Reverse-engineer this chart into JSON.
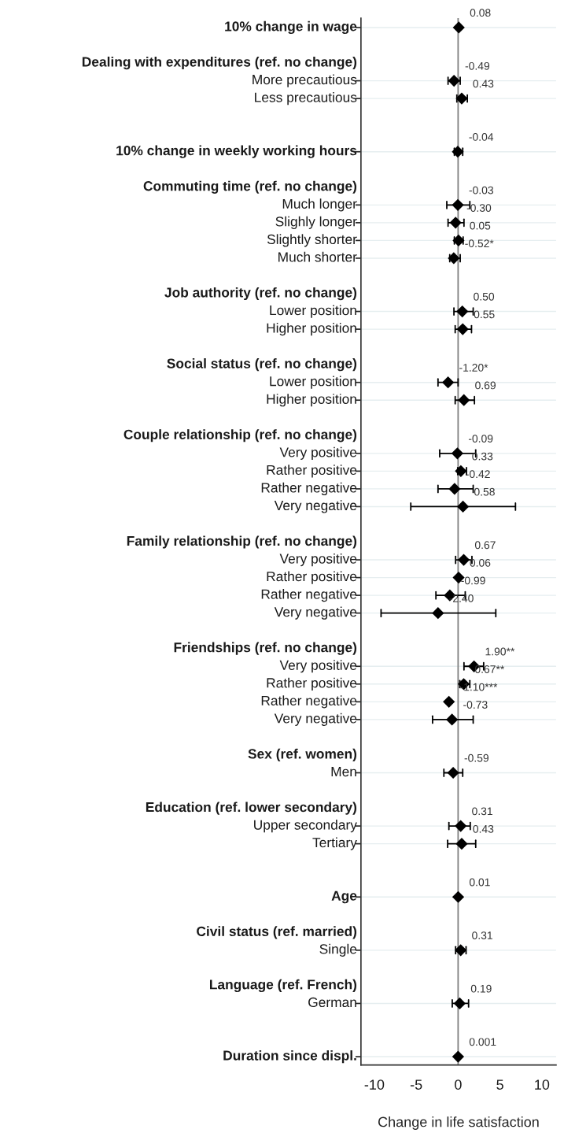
{
  "chart_data": {
    "type": "scatter",
    "orientation": "horizontal",
    "xlabel": "Change in life satisfaction",
    "categories": [
      "10% change in wage",
      null,
      "Dealing with expenditures (ref. no change)",
      "More precautious",
      "Less precautious",
      null,
      null,
      "10% change in weekly working hours",
      null,
      "Commuting time (ref. no change)",
      "Much longer",
      "Slighly longer",
      "Slightly shorter",
      "Much shorter",
      null,
      "Job authority (ref. no change)",
      "Lower position",
      "Higher position",
      null,
      "Social status (ref. no change)",
      "Lower position",
      "Higher position",
      null,
      "Couple relationship (ref. no change)",
      "Very positive",
      "Rather positive",
      "Rather negative",
      "Very negative",
      null,
      "Family relationship (ref. no change)",
      "Very positive",
      "Rather positive",
      "Rather negative",
      "Very negative",
      null,
      "Friendships (ref. no change)",
      "Very positive",
      "Rather positive",
      "Rather negative",
      "Very negative",
      null,
      "Sex (ref. women)",
      "Men",
      null,
      "Education (ref. lower secondary)",
      "Upper secondary",
      "Tertiary",
      null,
      null,
      "Age",
      null,
      "Civil status (ref. married)",
      "Single",
      null,
      "Language (ref. French)",
      "German",
      null,
      null,
      "Duration since displ."
    ],
    "values": [
      0.08,
      null,
      null,
      -0.49,
      0.43,
      null,
      null,
      -0.04,
      null,
      null,
      -0.03,
      -0.3,
      0.05,
      -0.52,
      null,
      null,
      0.5,
      0.55,
      null,
      null,
      -1.2,
      0.69,
      null,
      null,
      -0.09,
      0.33,
      -0.42,
      0.58,
      null,
      null,
      0.67,
      0.06,
      -0.99,
      -2.4,
      null,
      null,
      1.9,
      0.67,
      -1.1,
      -0.73,
      null,
      null,
      -0.59,
      null,
      null,
      0.31,
      0.43,
      null,
      null,
      0.01,
      null,
      null,
      0.31,
      null,
      null,
      0.19,
      null,
      null,
      0.001
    ],
    "errors": [
      null,
      null,
      null,
      [
        -1.2,
        0.25
      ],
      [
        -0.15,
        1.1
      ],
      null,
      null,
      [
        -0.45,
        0.55
      ],
      null,
      null,
      [
        -1.35,
        1.4
      ],
      [
        -1.2,
        0.7
      ],
      [
        -0.45,
        0.6
      ],
      [
        -1.0,
        0.25
      ],
      null,
      null,
      [
        -0.5,
        1.8
      ],
      [
        -0.35,
        1.6
      ],
      null,
      null,
      [
        -2.4,
        0
      ],
      [
        -0.35,
        1.95
      ],
      null,
      null,
      [
        -2.2,
        2.1
      ],
      [
        -0.05,
        1.0
      ],
      [
        -2.4,
        1.8
      ],
      [
        -5.65,
        6.85
      ],
      null,
      null,
      [
        -0.3,
        1.65
      ],
      null,
      [
        -2.65,
        0.85
      ],
      [
        -9.2,
        4.5
      ],
      null,
      null,
      [
        0.7,
        3.05
      ],
      [
        0.2,
        1.4
      ],
      null,
      [
        -3.05,
        1.8
      ],
      null,
      null,
      [
        -1.7,
        0.55
      ],
      null,
      null,
      [
        -1.1,
        1.45
      ],
      [
        -1.25,
        2.1
      ],
      null,
      null,
      null,
      null,
      null,
      [
        -0.3,
        0.95
      ],
      null,
      null,
      [
        -0.7,
        1.25
      ],
      null,
      null,
      null
    ],
    "value_labels": [
      "0.08",
      null,
      null,
      "-0.49",
      "0.43",
      null,
      null,
      "-0.04",
      null,
      null,
      "-0.03",
      "-0.30",
      "0.05",
      "-0.52*",
      null,
      null,
      "0.50",
      "0.55",
      null,
      null,
      "-1.20*",
      "0.69",
      null,
      null,
      "-0.09",
      "0.33",
      "-0.42",
      "0.58",
      null,
      null,
      "0.67",
      "0.06",
      "-0.99",
      "-2.40",
      null,
      null,
      "1.90**",
      "0.67**",
      "-1.10***",
      "-0.73",
      null,
      null,
      "-0.59",
      null,
      null,
      "0.31",
      "0.43",
      null,
      null,
      "0.01",
      null,
      null,
      "0.31",
      null,
      null,
      "0.19",
      null,
      null,
      "0.001"
    ],
    "color": "#000000",
    "marker": "diamond",
    "xlim": [
      -11.6,
      11.7
    ],
    "xticks": [
      -10,
      -5,
      0,
      5,
      10
    ],
    "ref_lines": [
      {
        "axis": "x",
        "value": 0,
        "color": "#808080"
      }
    ],
    "grid": "y",
    "legend": false
  }
}
